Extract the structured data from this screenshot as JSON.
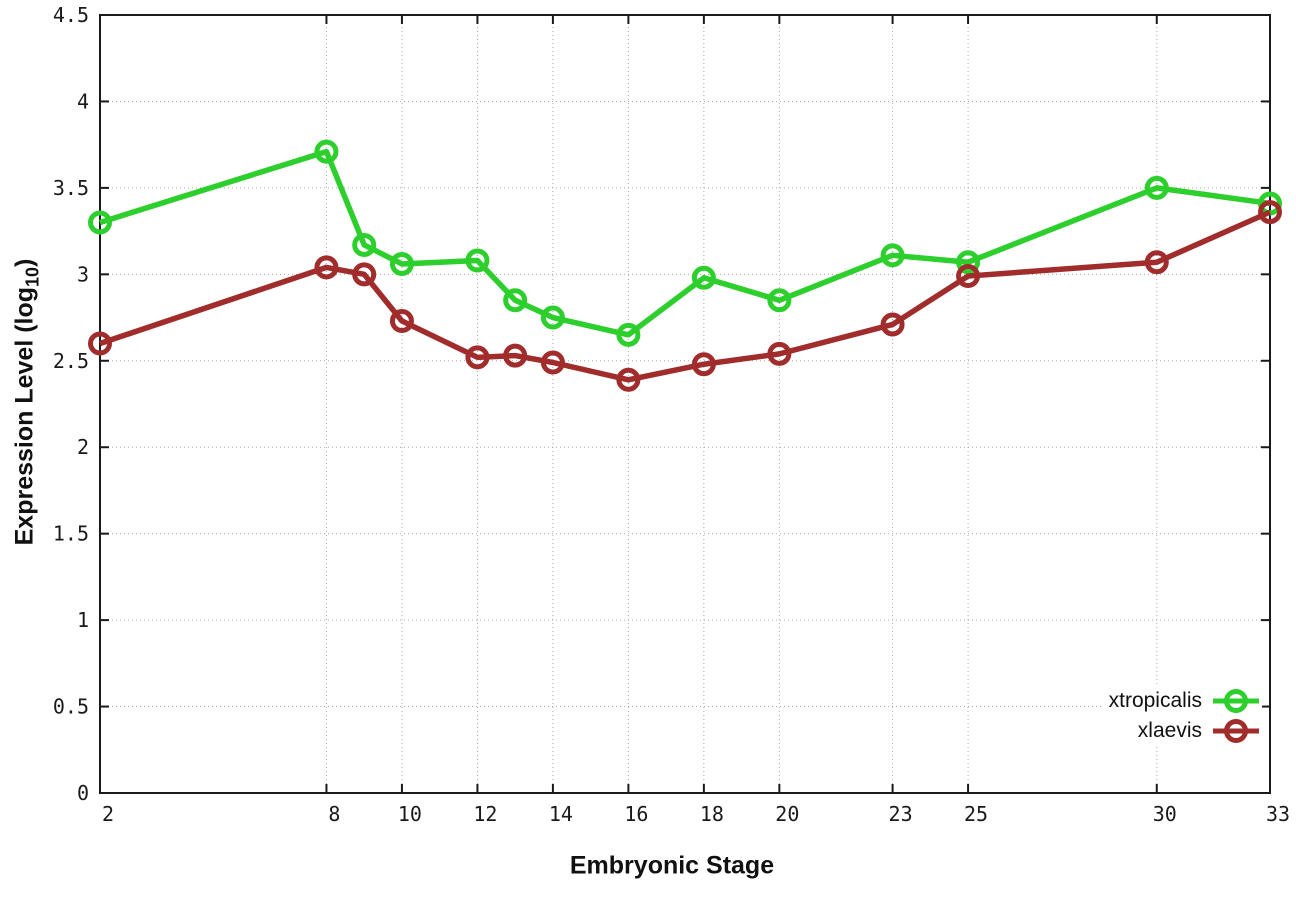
{
  "chart_data": {
    "type": "line",
    "title": "",
    "xlabel": "Embryonic Stage",
    "ylabel": "Expression Level (log10)",
    "ylabel_parts": {
      "pre": "Expression Level (log",
      "sub": "10",
      "post": ")"
    },
    "xlim": [
      2,
      33
    ],
    "ylim": [
      0,
      4.5
    ],
    "xticks": [
      2,
      8,
      10,
      12,
      14,
      16,
      18,
      20,
      23,
      25,
      30,
      33
    ],
    "xtick_labels": [
      "2",
      "8",
      "10",
      "12",
      "14",
      "16",
      "18",
      "20",
      "23",
      "25",
      "30",
      "33"
    ],
    "yticks": [
      0,
      0.5,
      1,
      1.5,
      2,
      2.5,
      3,
      3.5,
      4,
      4.5
    ],
    "ytick_labels": [
      "0",
      "0.5",
      "1",
      "1.5",
      "2",
      "2.5",
      "3",
      "3.5",
      "4",
      "4.5"
    ],
    "grid": true,
    "legend_position": "bottom-right",
    "marker": "open-circle",
    "axis_color": "#1a1a1a",
    "grid_color": "#a9a9a9",
    "x": [
      2,
      8,
      9,
      10,
      12,
      13,
      14,
      16,
      18,
      20,
      23,
      25,
      30,
      33
    ],
    "series": [
      {
        "name": "xtropicalis",
        "color": "#2ccf2c",
        "values": [
          3.3,
          3.71,
          3.17,
          3.06,
          3.08,
          2.85,
          2.75,
          2.65,
          2.98,
          2.85,
          3.11,
          3.07,
          3.5,
          3.41
        ]
      },
      {
        "name": "xlaevis",
        "color": "#a12c2c",
        "values": [
          2.6,
          3.04,
          3.0,
          2.73,
          2.52,
          2.53,
          2.49,
          2.39,
          2.48,
          2.54,
          2.71,
          2.99,
          3.07,
          3.36
        ]
      }
    ]
  }
}
